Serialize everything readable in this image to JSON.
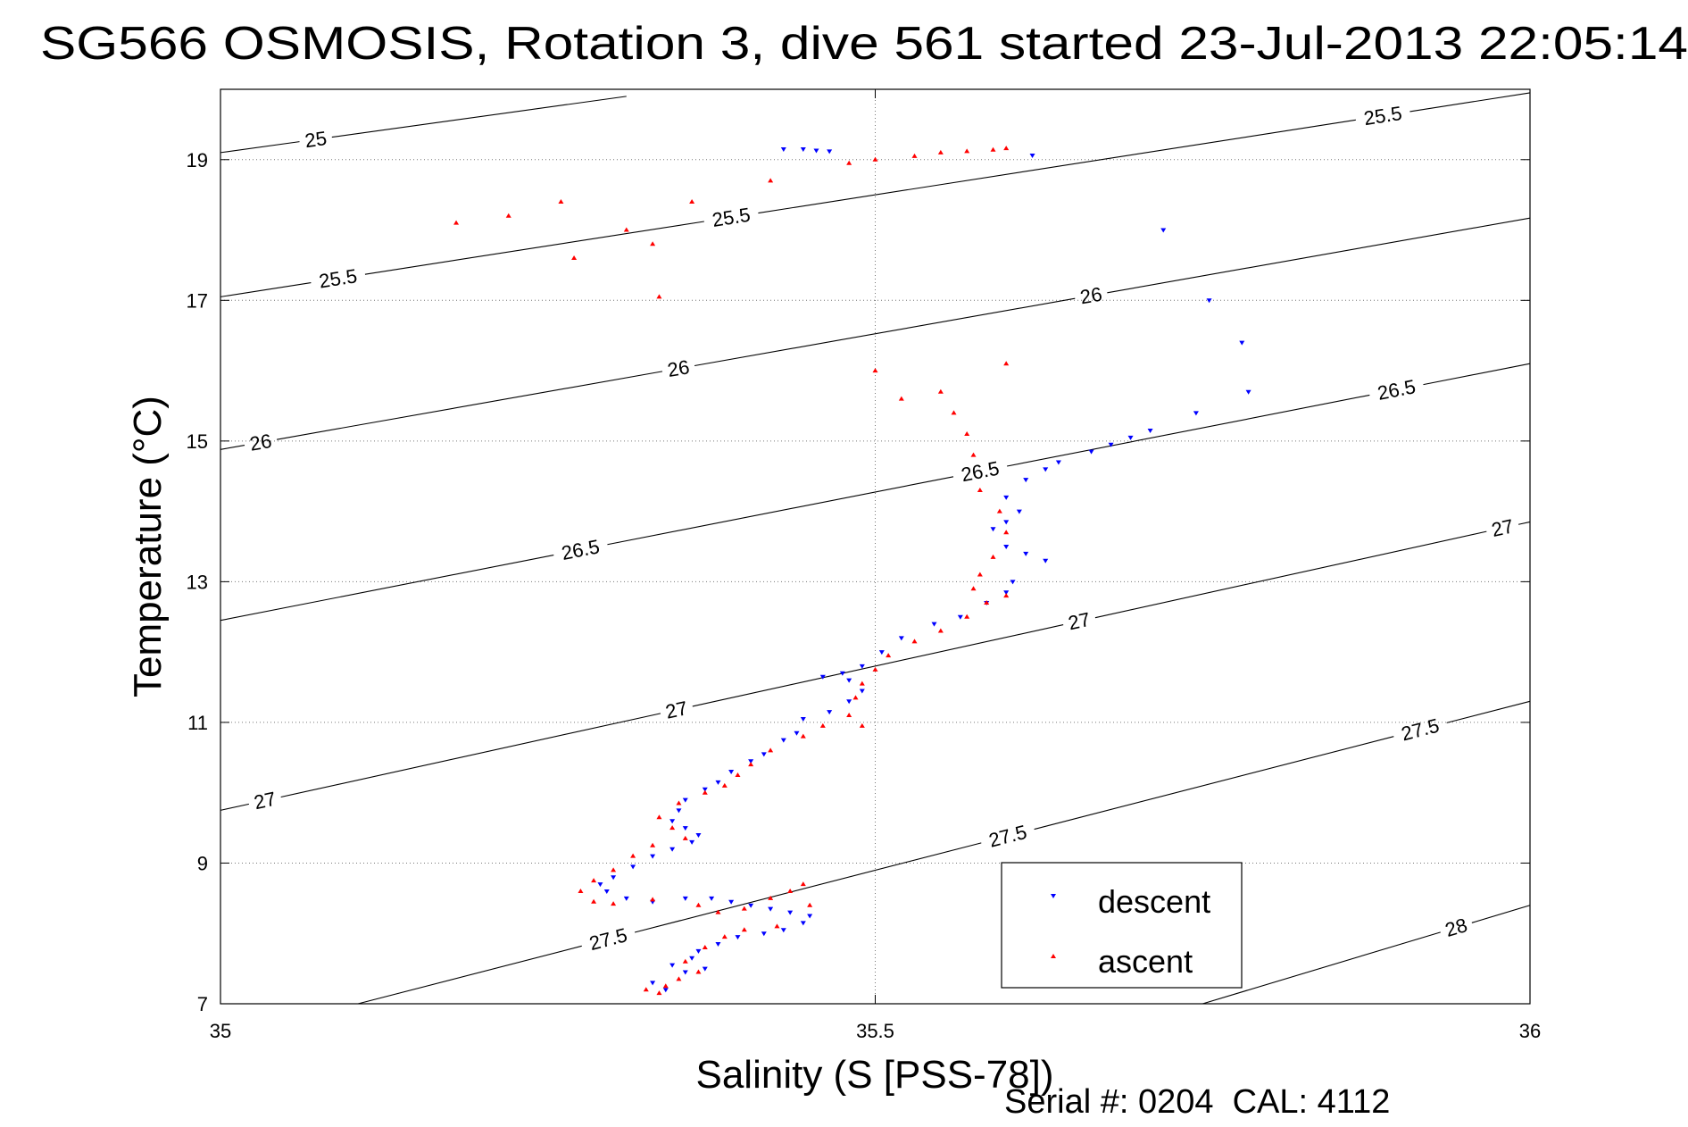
{
  "chart_data": {
    "type": "scatter",
    "title": "SG566 OSMOSIS, Rotation 3, dive 561 started 23-Jul-2013 22:05:14",
    "xlabel": "Salinity (S [PSS-78])",
    "ylabel": "Temperature (°C)",
    "footer": "Serial #: 0204  CAL: 4112",
    "xlim": [
      35,
      36
    ],
    "ylim": [
      7,
      20
    ],
    "xticks": [
      35,
      35.5,
      36
    ],
    "xtick_labels": [
      "35",
      "35.5",
      "36"
    ],
    "yticks": [
      7,
      9,
      11,
      13,
      15,
      17,
      19
    ],
    "ytick_labels": [
      "7",
      "9",
      "11",
      "13",
      "15",
      "17",
      "19"
    ],
    "grid": "dotted",
    "legend_position": "bottom-right",
    "colors": {
      "descent": "#0000ff",
      "ascent": "#ff0000",
      "contour": "#000000"
    },
    "contours": [
      {
        "level": "25",
        "p1": [
          35.0,
          19.1
        ],
        "p2": [
          35.31,
          19.9
        ],
        "labels": [
          [
            35.073,
            19.25
          ]
        ]
      },
      {
        "level": "25.5",
        "p1": [
          35.0,
          17.05
        ],
        "p2": [
          36.0,
          19.95
        ],
        "labels": [
          [
            35.09,
            17.28
          ],
          [
            35.39,
            18.18
          ],
          [
            35.891,
            19.22
          ]
        ]
      },
      {
        "level": "26",
        "p1": [
          35.0,
          14.88
        ],
        "p2": [
          36.0,
          18.17
        ],
        "labels": [
          [
            35.031,
            14.95
          ],
          [
            35.35,
            16.0
          ],
          [
            35.665,
            17.05
          ]
        ]
      },
      {
        "level": "26.5",
        "p1": [
          35.0,
          12.45
        ],
        "p2": [
          36.0,
          16.1
        ],
        "labels": [
          [
            35.275,
            13.45
          ],
          [
            35.58,
            14.58
          ],
          [
            35.898,
            15.73
          ]
        ]
      },
      {
        "level": "27",
        "p1": [
          35.0,
          9.75
        ],
        "p2": [
          36.0,
          13.85
        ],
        "labels": [
          [
            35.035,
            9.8
          ],
          [
            35.348,
            11.2
          ],
          [
            35.656,
            12.42
          ],
          [
            35.98,
            13.68
          ]
        ]
      },
      {
        "level": "27.5",
        "p1": [
          35.105,
          7.0
        ],
        "p2": [
          36.0,
          11.3
        ],
        "labels": [
          [
            35.295,
            8.0
          ],
          [
            35.6,
            9.47
          ],
          [
            35.915,
            10.98
          ]
        ]
      },
      {
        "level": "28",
        "p1": [
          35.75,
          7.0
        ],
        "p2": [
          36.0,
          8.4
        ],
        "labels": [
          [
            35.945,
            8.0
          ]
        ]
      }
    ],
    "series": [
      {
        "name": "descent",
        "points": [
          [
            35.43,
            19.15
          ],
          [
            35.445,
            19.15
          ],
          [
            35.455,
            19.13
          ],
          [
            35.465,
            19.12
          ],
          [
            35.62,
            19.06
          ],
          [
            35.72,
            18.0
          ],
          [
            35.755,
            17.0
          ],
          [
            35.78,
            16.4
          ],
          [
            35.785,
            15.7
          ],
          [
            35.745,
            15.4
          ],
          [
            35.71,
            15.15
          ],
          [
            35.695,
            15.05
          ],
          [
            35.68,
            14.95
          ],
          [
            35.665,
            14.85
          ],
          [
            35.64,
            14.7
          ],
          [
            35.63,
            14.6
          ],
          [
            35.615,
            14.45
          ],
          [
            35.6,
            14.2
          ],
          [
            35.61,
            14.0
          ],
          [
            35.6,
            13.85
          ],
          [
            35.59,
            13.75
          ],
          [
            35.6,
            13.5
          ],
          [
            35.615,
            13.4
          ],
          [
            35.63,
            13.3
          ],
          [
            35.605,
            13.0
          ],
          [
            35.6,
            12.85
          ],
          [
            35.585,
            12.7
          ],
          [
            35.565,
            12.5
          ],
          [
            35.545,
            12.4
          ],
          [
            35.52,
            12.2
          ],
          [
            35.505,
            12.0
          ],
          [
            35.49,
            11.8
          ],
          [
            35.475,
            11.7
          ],
          [
            35.46,
            11.65
          ],
          [
            35.48,
            11.6
          ],
          [
            35.49,
            11.45
          ],
          [
            35.48,
            11.3
          ],
          [
            35.465,
            11.15
          ],
          [
            35.445,
            11.05
          ],
          [
            35.44,
            10.85
          ],
          [
            35.43,
            10.75
          ],
          [
            35.415,
            10.55
          ],
          [
            35.405,
            10.45
          ],
          [
            35.39,
            10.3
          ],
          [
            35.38,
            10.15
          ],
          [
            35.37,
            10.05
          ],
          [
            35.355,
            9.9
          ],
          [
            35.35,
            9.75
          ],
          [
            35.345,
            9.6
          ],
          [
            35.355,
            9.5
          ],
          [
            35.365,
            9.4
          ],
          [
            35.36,
            9.3
          ],
          [
            35.345,
            9.2
          ],
          [
            35.33,
            9.1
          ],
          [
            35.315,
            8.95
          ],
          [
            35.3,
            8.8
          ],
          [
            35.29,
            8.7
          ],
          [
            35.295,
            8.6
          ],
          [
            35.31,
            8.5
          ],
          [
            35.33,
            8.45
          ],
          [
            35.355,
            8.5
          ],
          [
            35.375,
            8.5
          ],
          [
            35.39,
            8.45
          ],
          [
            35.405,
            8.4
          ],
          [
            35.42,
            8.35
          ],
          [
            35.435,
            8.3
          ],
          [
            35.45,
            8.25
          ],
          [
            35.445,
            8.15
          ],
          [
            35.43,
            8.05
          ],
          [
            35.415,
            8.0
          ],
          [
            35.395,
            7.95
          ],
          [
            35.38,
            7.85
          ],
          [
            35.365,
            7.75
          ],
          [
            35.36,
            7.65
          ],
          [
            35.37,
            7.5
          ],
          [
            35.355,
            7.45
          ],
          [
            35.345,
            7.55
          ],
          [
            35.33,
            7.3
          ],
          [
            35.34,
            7.2
          ]
        ]
      },
      {
        "name": "ascent",
        "points": [
          [
            35.18,
            18.1
          ],
          [
            35.22,
            18.2
          ],
          [
            35.26,
            18.4
          ],
          [
            35.31,
            18.0
          ],
          [
            35.27,
            17.6
          ],
          [
            35.33,
            17.8
          ],
          [
            35.335,
            17.05
          ],
          [
            35.36,
            18.4
          ],
          [
            35.42,
            18.7
          ],
          [
            35.48,
            18.95
          ],
          [
            35.5,
            19.0
          ],
          [
            35.53,
            19.05
          ],
          [
            35.55,
            19.1
          ],
          [
            35.57,
            19.12
          ],
          [
            35.59,
            19.14
          ],
          [
            35.6,
            19.16
          ],
          [
            35.5,
            16.0
          ],
          [
            35.52,
            15.6
          ],
          [
            35.55,
            15.7
          ],
          [
            35.56,
            15.4
          ],
          [
            35.57,
            15.1
          ],
          [
            35.575,
            14.8
          ],
          [
            35.6,
            16.1
          ],
          [
            35.58,
            14.3
          ],
          [
            35.595,
            14.0
          ],
          [
            35.6,
            13.7
          ],
          [
            35.59,
            13.35
          ],
          [
            35.58,
            13.1
          ],
          [
            35.575,
            12.9
          ],
          [
            35.585,
            12.7
          ],
          [
            35.6,
            12.8
          ],
          [
            35.57,
            12.5
          ],
          [
            35.55,
            12.3
          ],
          [
            35.53,
            12.15
          ],
          [
            35.51,
            11.95
          ],
          [
            35.5,
            11.75
          ],
          [
            35.49,
            11.55
          ],
          [
            35.485,
            11.35
          ],
          [
            35.48,
            11.1
          ],
          [
            35.49,
            10.95
          ],
          [
            35.46,
            10.95
          ],
          [
            35.445,
            10.8
          ],
          [
            35.42,
            10.6
          ],
          [
            35.405,
            10.4
          ],
          [
            35.395,
            10.25
          ],
          [
            35.385,
            10.1
          ],
          [
            35.37,
            10.0
          ],
          [
            35.35,
            9.85
          ],
          [
            35.335,
            9.65
          ],
          [
            35.345,
            9.5
          ],
          [
            35.355,
            9.35
          ],
          [
            35.33,
            9.25
          ],
          [
            35.315,
            9.1
          ],
          [
            35.3,
            8.9
          ],
          [
            35.285,
            8.75
          ],
          [
            35.275,
            8.6
          ],
          [
            35.285,
            8.45
          ],
          [
            35.3,
            8.42
          ],
          [
            35.33,
            8.48
          ],
          [
            35.365,
            8.4
          ],
          [
            35.38,
            8.3
          ],
          [
            35.4,
            8.35
          ],
          [
            35.42,
            8.5
          ],
          [
            35.435,
            8.6
          ],
          [
            35.445,
            8.7
          ],
          [
            35.45,
            8.4
          ],
          [
            35.425,
            8.1
          ],
          [
            35.4,
            8.05
          ],
          [
            35.385,
            7.95
          ],
          [
            35.37,
            7.8
          ],
          [
            35.355,
            7.6
          ],
          [
            35.365,
            7.45
          ],
          [
            35.35,
            7.35
          ],
          [
            35.34,
            7.25
          ],
          [
            35.325,
            7.2
          ],
          [
            35.335,
            7.15
          ]
        ]
      }
    ]
  }
}
